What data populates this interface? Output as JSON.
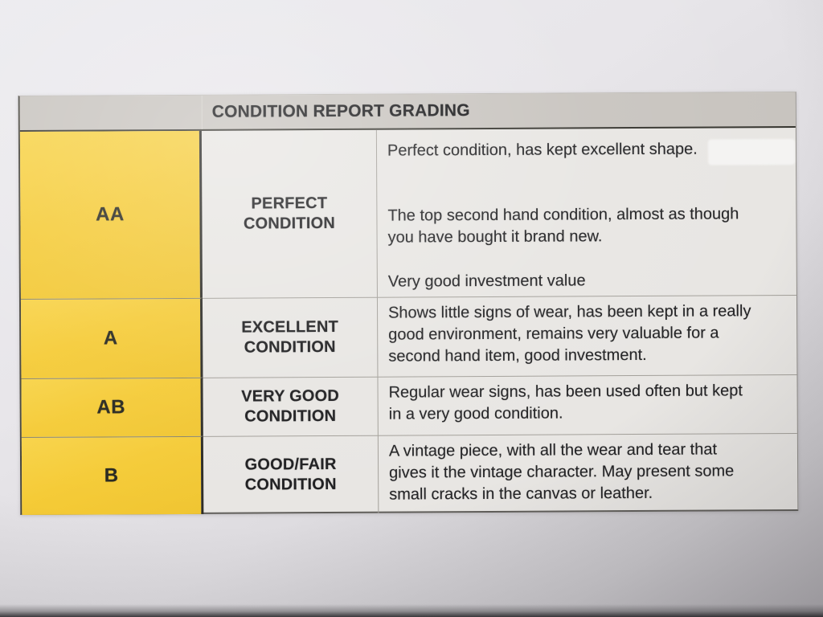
{
  "table": {
    "title": "CONDITION REPORT GRADING",
    "rows": [
      {
        "grade": "AA",
        "label": "PERFECT\nCONDITION",
        "paragraphs": [
          "Perfect condition, has kept excellent shape.",
          "The top second hand condition, almost as though\nyou have bought it brand new.",
          "Very good investment value"
        ]
      },
      {
        "grade": "A",
        "label": "EXCELLENT\nCONDITION",
        "paragraphs": [
          "Shows little signs of wear, has been kept in a really\ngood environment, remains very valuable for a\nsecond hand item, good investment."
        ]
      },
      {
        "grade": "AB",
        "label": "VERY GOOD\nCONDITION",
        "paragraphs": [
          "Regular wear signs, has been used often but kept\nin a very good condition."
        ]
      },
      {
        "grade": "B",
        "label": "GOOD/FAIR\nCONDITION",
        "paragraphs": [
          "A vintage piece, with all the wear and tear that\ngives it the vintage character. May present some\nsmall cracks in the canvas or leather."
        ]
      }
    ],
    "colors": {
      "grade_cell_bg": "#F5CB37",
      "header_bg": "#C8C4BF",
      "cell_bg": "#E8E6E3",
      "text": "#232325"
    }
  }
}
